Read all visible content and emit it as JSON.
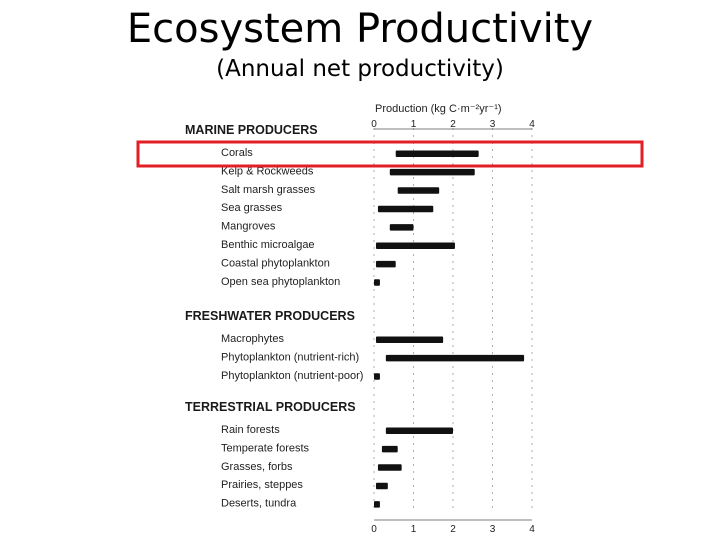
{
  "slide": {
    "title": "Ecosystem Productivity",
    "subtitle": "(Annual net productivity)"
  },
  "chart_data": {
    "type": "bar",
    "orientation": "horizontal",
    "axis_label": "Production (kg C·m⁻²yr⁻¹)",
    "xlim": [
      0,
      4
    ],
    "xticks": [
      "0",
      "1",
      "2",
      "3",
      "4"
    ],
    "grid": true,
    "highlighted_category": "Corals",
    "highlight_color": "#e31e24",
    "bar_color": "#111111",
    "groups": [
      {
        "name": "MARINE PRODUCERS",
        "items": [
          {
            "label": "Corals",
            "range": [
              0.55,
              2.65
            ]
          },
          {
            "label": "Kelp & Rockweeds",
            "range": [
              0.4,
              2.55
            ]
          },
          {
            "label": "Salt marsh grasses",
            "range": [
              0.6,
              1.65
            ]
          },
          {
            "label": "Sea grasses",
            "range": [
              0.1,
              1.5
            ]
          },
          {
            "label": "Mangroves",
            "range": [
              0.4,
              1.0
            ]
          },
          {
            "label": "Benthic microalgae",
            "range": [
              0.05,
              2.05
            ]
          },
          {
            "label": "Coastal phytoplankton",
            "range": [
              0.05,
              0.55
            ]
          },
          {
            "label": "Open sea phytoplankton",
            "range": [
              0.0,
              0.15
            ]
          }
        ]
      },
      {
        "name": "FRESHWATER PRODUCERS",
        "items": [
          {
            "label": "Macrophytes",
            "range": [
              0.05,
              1.75
            ]
          },
          {
            "label": "Phytoplankton (nutrient-rich)",
            "range": [
              0.3,
              3.8
            ]
          },
          {
            "label": "Phytoplankton (nutrient-poor)",
            "range": [
              0.0,
              0.15
            ]
          }
        ]
      },
      {
        "name": "TERRESTRIAL PRODUCERS",
        "items": [
          {
            "label": "Rain forests",
            "range": [
              0.3,
              2.0
            ]
          },
          {
            "label": "Temperate forests",
            "range": [
              0.2,
              0.6
            ]
          },
          {
            "label": "Grasses, forbs",
            "range": [
              0.1,
              0.7
            ]
          },
          {
            "label": "Prairies, steppes",
            "range": [
              0.05,
              0.35
            ]
          },
          {
            "label": "Deserts, tundra",
            "range": [
              0.0,
              0.15
            ]
          }
        ]
      }
    ]
  }
}
